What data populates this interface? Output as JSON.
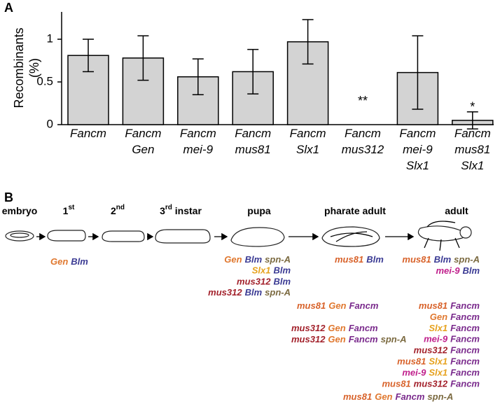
{
  "panel_a": {
    "label": "A"
  },
  "chart_data": {
    "type": "bar",
    "y_label": [
      "Recombinants",
      "(%)"
    ],
    "categories": [
      [
        "Fancm"
      ],
      [
        "Fancm",
        "Gen"
      ],
      [
        "Fancm",
        "mei-9"
      ],
      [
        "Fancm",
        "mus81"
      ],
      [
        "Fancm",
        "Slx1"
      ],
      [
        "Fancm",
        "mus312"
      ],
      [
        "Fancm",
        "mei-9",
        "Slx1"
      ],
      [
        "Fancm",
        "mus81",
        "Slx1"
      ]
    ],
    "values": [
      0.81,
      0.78,
      0.56,
      0.62,
      0.97,
      0,
      0.61,
      0.05
    ],
    "errors": [
      0.19,
      0.26,
      0.21,
      0.26,
      0.26,
      null,
      0.43,
      0.1
    ],
    "significance": [
      null,
      null,
      null,
      null,
      null,
      "**",
      null,
      "*"
    ],
    "color": "#d3d3d3",
    "ylim": [
      0,
      1.32
    ],
    "yticks": [
      0,
      0.5,
      1
    ]
  },
  "panel_b": {
    "label": "B",
    "stages": [
      {
        "label": "embryo"
      },
      {
        "label": "1",
        "sup": "st"
      },
      {
        "label": "2",
        "sup": "nd"
      },
      {
        "label": "3",
        "sup": "rd",
        "suffix": " instar"
      },
      {
        "label": "pupa"
      },
      {
        "label": "pharate  adult"
      },
      {
        "label": "adult"
      }
    ],
    "gene_colors": {
      "Gen": "#e0782f",
      "Blm": "#3b3b94",
      "spn-A": "#7b6a40",
      "Slx1": "#e6a21e",
      "mus312": "#a3222c",
      "mus81": "#d8622a",
      "Fancm": "#7a2a8c",
      "mei-9": "#c0208c"
    },
    "groups": [
      {
        "rows": [
          [
            "Gen",
            "Blm"
          ]
        ]
      },
      {
        "rows": [
          [
            "Gen",
            "Blm",
            "spn-A"
          ],
          [
            "Slx1",
            "Blm"
          ],
          [
            "mus312",
            "Blm"
          ],
          [
            "mus312",
            "Blm",
            "spn-A"
          ]
        ]
      },
      {
        "rows": [
          [
            "mus81",
            "Blm"
          ]
        ]
      },
      {
        "rows": [
          [
            "mus81",
            "Blm",
            "spn-A"
          ],
          [
            "mei-9",
            "Blm"
          ]
        ]
      },
      {
        "rows": [
          [
            "mus81",
            "Gen",
            "Fancm"
          ]
        ]
      },
      {
        "rows": [
          [
            "mus312",
            "Gen",
            "Fancm"
          ],
          [
            "mus312",
            "Gen",
            "Fancm",
            "spn-A"
          ]
        ]
      },
      {
        "rows": [
          [
            "mus81",
            "Fancm"
          ],
          [
            "Gen",
            "Fancm"
          ],
          [
            "Slx1",
            "Fancm"
          ],
          [
            "mei-9",
            "Fancm"
          ],
          [
            "mus312",
            "Fancm"
          ],
          [
            "mus81",
            "Slx1",
            "Fancm"
          ],
          [
            "mei-9",
            "Slx1",
            "Fancm"
          ],
          [
            "mus81",
            "mus312",
            "Fancm"
          ]
        ]
      },
      {
        "rows": [
          [
            "mus81",
            "Gen",
            "Fancm",
            "spn-A"
          ]
        ]
      }
    ]
  }
}
